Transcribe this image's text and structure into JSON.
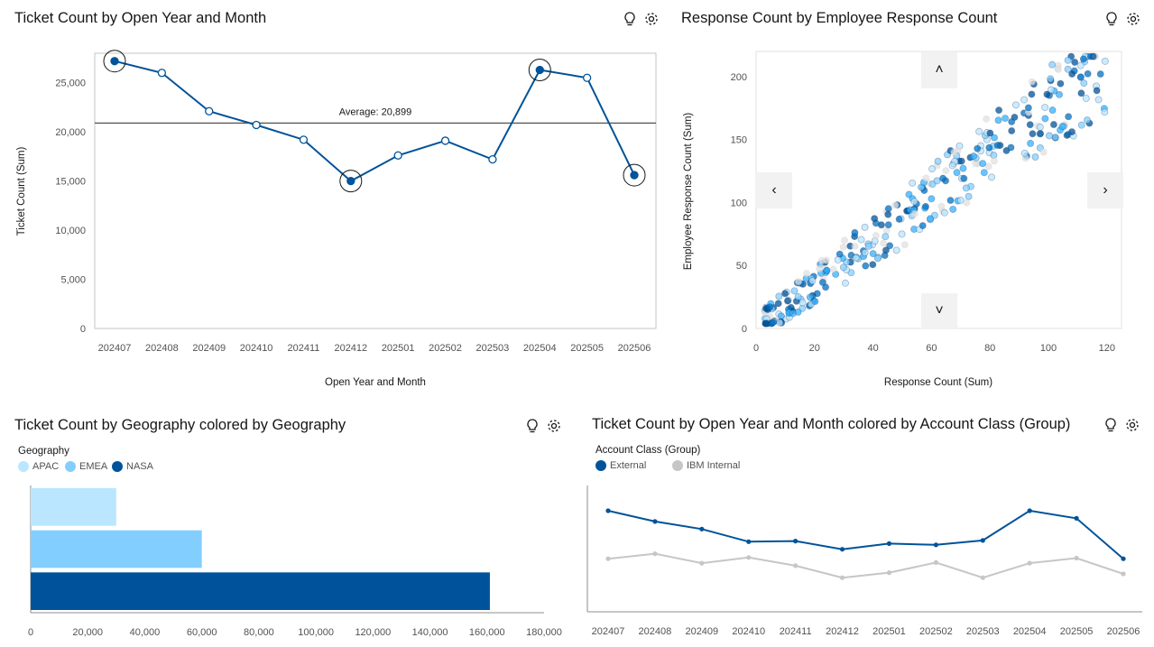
{
  "colors": {
    "blue": "#0f62fe",
    "dark_blue": "#00539a",
    "light_blue": "#82cfff",
    "pale_blue": "#bae6ff",
    "gray": "#c6c6c6"
  },
  "panels": {
    "p1": {
      "title": "Ticket Count by Open Year and Month"
    },
    "p2": {
      "title": "Response Count by Employee Response Count"
    },
    "p3": {
      "title": "Ticket Count by Geography colored by Geography"
    },
    "p4": {
      "title": "Ticket Count by Open Year and Month colored by Account Class (Group)"
    }
  },
  "icons": {
    "insight": "lightbulb-icon",
    "settings": "settings-icon"
  },
  "chart_data": [
    {
      "type": "line",
      "title": "Ticket Count by Open Year and Month",
      "xlabel": "Open Year and Month",
      "ylabel": "Ticket Count (Sum)",
      "categories": [
        "202407",
        "202408",
        "202409",
        "202410",
        "202411",
        "202412",
        "202501",
        "202502",
        "202503",
        "202504",
        "202505",
        "202506"
      ],
      "values": [
        27200,
        26000,
        22100,
        20700,
        19200,
        15000,
        17600,
        19100,
        17200,
        26300,
        25500,
        15600
      ],
      "highlighted": [
        "202407",
        "202412",
        "202504",
        "202506"
      ],
      "ylim": [
        0,
        28000
      ],
      "yticks": [
        0,
        5000,
        10000,
        15000,
        20000,
        25000
      ],
      "ytick_labels": [
        "0",
        "5,000",
        "10,000",
        "15,000",
        "20,000",
        "25,000"
      ],
      "reference_line": {
        "value": 20899,
        "label": "Average: 20,899"
      }
    },
    {
      "type": "scatter",
      "title": "Response Count by Employee Response Count",
      "xlabel": "Response Count (Sum)",
      "ylabel": "Employee Response Count (Sum)",
      "xlim": [
        0,
        125
      ],
      "ylim": [
        0,
        220
      ],
      "xticks": [
        0,
        20,
        40,
        60,
        80,
        100,
        120
      ],
      "yticks": [
        0,
        50,
        100,
        150,
        200
      ],
      "point_count": 320,
      "relationship": "y ≈ 1.75·x with spread",
      "nav_labels": [
        "‹",
        "›",
        "˄",
        "˅"
      ]
    },
    {
      "type": "bar",
      "orientation": "horizontal",
      "title": "Ticket Count by Geography colored by Geography",
      "legend_title": "Geography",
      "categories": [
        "APAC",
        "EMEA",
        "NASA"
      ],
      "values": [
        30000,
        60000,
        161000
      ],
      "colors": [
        "#bae6ff",
        "#82cfff",
        "#00539a"
      ],
      "xlim": [
        0,
        180000
      ],
      "xticks": [
        0,
        20000,
        40000,
        60000,
        80000,
        100000,
        120000,
        140000,
        160000,
        180000
      ],
      "xtick_labels": [
        "0",
        "20,000",
        "40,000",
        "60,000",
        "80,000",
        "100,000",
        "120,000",
        "140,000",
        "160,000",
        "180,000"
      ]
    },
    {
      "type": "line",
      "title": "Ticket Count by Open Year and Month colored by Account Class (Group)",
      "legend_title": "Account Class (Group)",
      "categories": [
        "202407",
        "202408",
        "202409",
        "202410",
        "202411",
        "202412",
        "202501",
        "202502",
        "202503",
        "202504",
        "202505",
        "202506"
      ],
      "series": [
        {
          "name": "External",
          "color": "#00539a",
          "values": [
            19000,
            17300,
            16100,
            14100,
            14200,
            12900,
            13800,
            13600,
            14300,
            19000,
            17800,
            11400
          ]
        },
        {
          "name": "IBM Internal",
          "color": "#c6c6c6",
          "values": [
            11400,
            12200,
            10700,
            11600,
            10300,
            8400,
            9200,
            10800,
            8400,
            10700,
            11500,
            9000
          ]
        }
      ],
      "ylim": [
        3000,
        23000
      ]
    }
  ]
}
